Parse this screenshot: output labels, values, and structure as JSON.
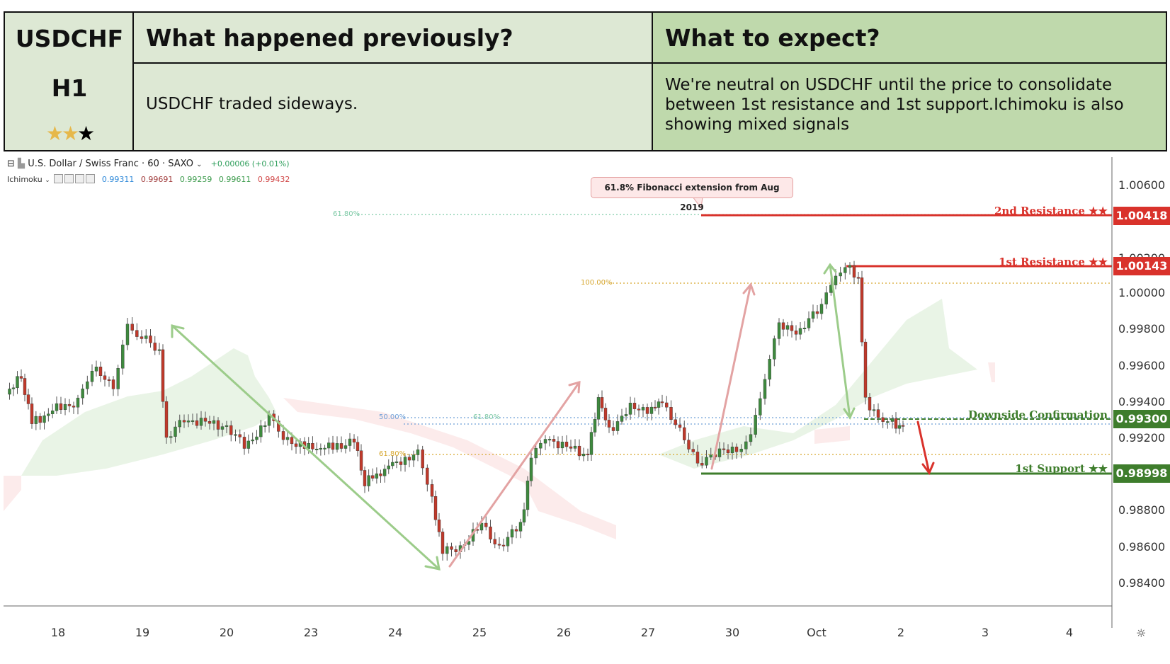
{
  "header": {
    "symbol": "USDCHF",
    "timeframe": "H1",
    "stars": [
      "★",
      "★",
      "★"
    ],
    "prev_title": "What happened previously?",
    "prev_text": "USDCHF traded sideways.",
    "expect_title": "What to expect?",
    "expect_text": "We're neutral on USDCHF until the price to consolidate between 1st resistance and 1st support.Ichimoku is also showing mixed signals"
  },
  "chart": {
    "legend_symbol": "U.S. Dollar / Swiss Franc · 60 · SAXO",
    "legend_change": "+0.00006 (+0.01%)",
    "indicator_name": "Ichimoku",
    "indicator_values": [
      "0.99311",
      "0.99691",
      "0.99259",
      "0.99611",
      "0.99432"
    ],
    "callout": "61.8% Fibonacci extension from Aug 2019",
    "fib_labels": {
      "f618_top": "61.80%",
      "f100": "100.00%",
      "f50": "50.00%",
      "f618_mid": "61.80%",
      "f618_low": "61.80%"
    },
    "levels": {
      "res2_label": "2nd Resistance ★★",
      "res2_price": "1.00418",
      "res1_label": "1st Resistance ★★",
      "res1_price": "1.00143",
      "conf_label": "Downside Confirmation",
      "conf_price": "0.99300",
      "sup1_label": "1st Support ★★",
      "sup1_price": "0.98998"
    },
    "y_ticks": [
      "1.00600",
      "1.00200",
      "1.00000",
      "0.99800",
      "0.99600",
      "0.99400",
      "0.99200",
      "0.98800",
      "0.98600",
      "0.98400"
    ],
    "x_ticks": [
      "18",
      "19",
      "20",
      "23",
      "24",
      "25",
      "26",
      "27",
      "30",
      "Oct",
      "2",
      "3",
      "4"
    ],
    "colors": {
      "resistance": "#d9322b",
      "support": "#3e7d2c",
      "up": "#3e8a3e",
      "down": "#c0392b"
    }
  }
}
